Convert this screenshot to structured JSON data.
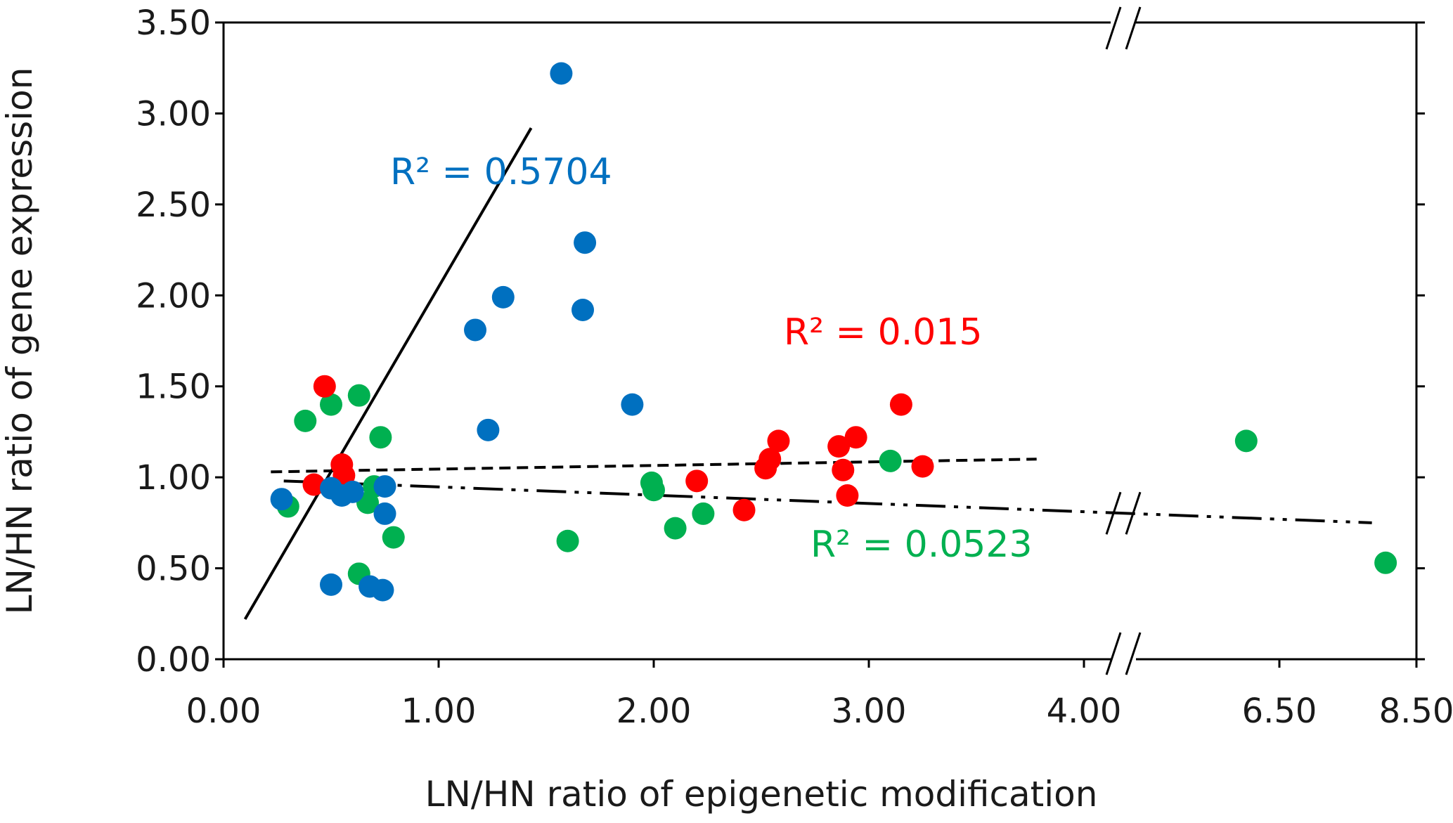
{
  "chart_data": {
    "type": "scatter",
    "xlabel": "LN/HN ratio of epigenetic modification",
    "ylabel": "LN/HN ratio of gene expression",
    "ylim": [
      0,
      3.5
    ],
    "y_ticks": [
      "0.00",
      "0.50",
      "1.00",
      "1.50",
      "2.00",
      "2.50",
      "3.00",
      "3.50"
    ],
    "x_ticks": [
      "0.00",
      "1.00",
      "2.00",
      "3.00",
      "4.00",
      "6.50",
      "8.50"
    ],
    "x_axis_break": "between 4.00 and 6.50",
    "series": [
      {
        "name": "blue",
        "color": "#0070C0",
        "r2_label": "R² = 0.5704",
        "trendline": {
          "style": "solid",
          "x": [
            0.1,
            1.43
          ],
          "y": [
            0.22,
            2.92
          ]
        },
        "points": [
          {
            "x": 0.27,
            "y": 0.88
          },
          {
            "x": 0.5,
            "y": 0.94
          },
          {
            "x": 0.55,
            "y": 0.9
          },
          {
            "x": 0.6,
            "y": 0.92
          },
          {
            "x": 0.5,
            "y": 0.41
          },
          {
            "x": 0.68,
            "y": 0.4
          },
          {
            "x": 0.74,
            "y": 0.38
          },
          {
            "x": 0.75,
            "y": 0.95
          },
          {
            "x": 0.75,
            "y": 0.8
          },
          {
            "x": 1.17,
            "y": 1.81
          },
          {
            "x": 1.23,
            "y": 1.26
          },
          {
            "x": 1.3,
            "y": 1.99
          },
          {
            "x": 1.57,
            "y": 3.22
          },
          {
            "x": 1.67,
            "y": 1.92
          },
          {
            "x": 1.68,
            "y": 2.29
          },
          {
            "x": 1.9,
            "y": 1.4
          }
        ]
      },
      {
        "name": "red",
        "color": "#FF0000",
        "r2_label": "R² = 0.015",
        "trendline": {
          "style": "dashed",
          "x": [
            0.22,
            3.78
          ],
          "y": [
            1.03,
            1.1
          ]
        },
        "points": [
          {
            "x": 0.47,
            "y": 1.5
          },
          {
            "x": 0.42,
            "y": 0.96
          },
          {
            "x": 0.55,
            "y": 1.07
          },
          {
            "x": 0.56,
            "y": 1.01
          },
          {
            "x": 2.2,
            "y": 0.98
          },
          {
            "x": 2.42,
            "y": 0.82
          },
          {
            "x": 2.52,
            "y": 1.05
          },
          {
            "x": 2.54,
            "y": 1.1
          },
          {
            "x": 2.58,
            "y": 1.2
          },
          {
            "x": 2.86,
            "y": 1.17
          },
          {
            "x": 2.88,
            "y": 1.04
          },
          {
            "x": 2.9,
            "y": 0.9
          },
          {
            "x": 2.94,
            "y": 1.22
          },
          {
            "x": 3.15,
            "y": 1.4
          },
          {
            "x": 3.25,
            "y": 1.06
          }
        ]
      },
      {
        "name": "green",
        "color": "#00B050",
        "r2_label": "R² = 0.0523",
        "trendline": {
          "style": "dash-dot-dot",
          "x": [
            0.28,
            7.85
          ],
          "y": [
            0.98,
            0.75
          ]
        },
        "points": [
          {
            "x": 0.3,
            "y": 0.84
          },
          {
            "x": 0.38,
            "y": 1.31
          },
          {
            "x": 0.5,
            "y": 1.4
          },
          {
            "x": 0.55,
            "y": 0.93
          },
          {
            "x": 0.63,
            "y": 1.45
          },
          {
            "x": 0.63,
            "y": 0.47
          },
          {
            "x": 0.67,
            "y": 0.86
          },
          {
            "x": 0.7,
            "y": 0.95
          },
          {
            "x": 0.73,
            "y": 1.22
          },
          {
            "x": 0.79,
            "y": 0.67
          },
          {
            "x": 1.6,
            "y": 0.65
          },
          {
            "x": 1.99,
            "y": 0.97
          },
          {
            "x": 2.0,
            "y": 0.93
          },
          {
            "x": 2.1,
            "y": 0.72
          },
          {
            "x": 2.23,
            "y": 0.8
          },
          {
            "x": 3.1,
            "y": 1.09
          },
          {
            "x": 6.0,
            "y": 1.2
          },
          {
            "x": 8.05,
            "y": 0.53
          }
        ]
      }
    ]
  }
}
